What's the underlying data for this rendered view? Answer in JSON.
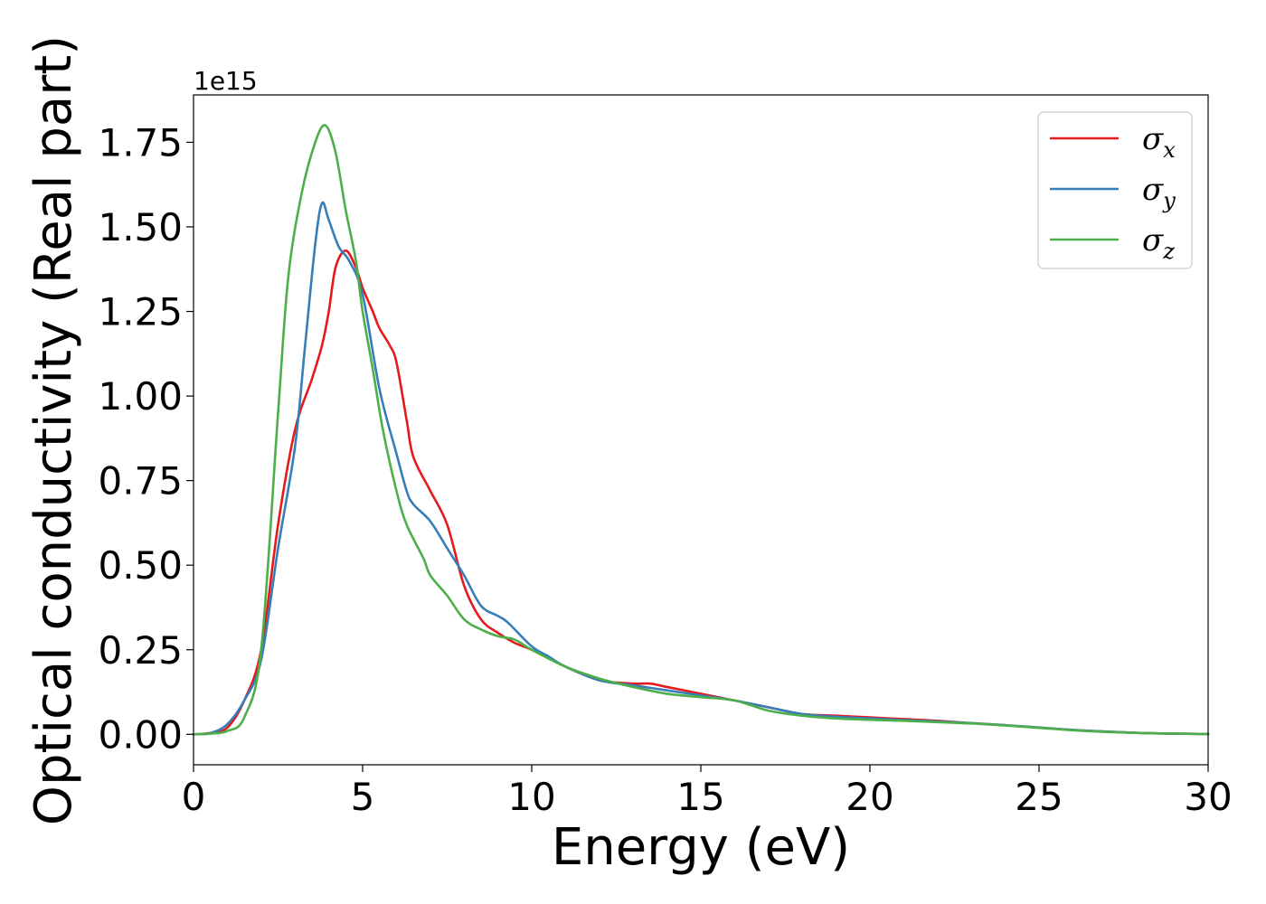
{
  "chart_data": {
    "type": "line",
    "title": "",
    "xlabel": "Energy (eV)",
    "ylabel": "Optical conductivity (Real part)",
    "y_offset_label": "1e15",
    "xlim": [
      0,
      30
    ],
    "ylim": [
      -0.09,
      1.89
    ],
    "x_ticks": [
      0,
      5,
      10,
      15,
      20,
      25,
      30
    ],
    "x_tick_labels": [
      "0",
      "5",
      "10",
      "15",
      "20",
      "25",
      "30"
    ],
    "y_ticks": [
      0,
      0.25,
      0.5,
      0.75,
      1.0,
      1.25,
      1.5,
      1.75
    ],
    "y_tick_labels": [
      "0.00",
      "0.25",
      "0.50",
      "0.75",
      "1.00",
      "1.25",
      "1.50",
      "1.75"
    ],
    "grid": false,
    "legend_position": "top-right",
    "series": [
      {
        "name": "σx",
        "legend_base": "σ",
        "legend_sub": "x",
        "color": "#e41a1c",
        "points": [
          [
            0,
            0
          ],
          [
            0.5,
            0.004
          ],
          [
            1,
            0.02
          ],
          [
            1.5,
            0.1
          ],
          [
            2,
            0.25
          ],
          [
            2.5,
            0.62
          ],
          [
            3,
            0.9
          ],
          [
            3.5,
            1.05
          ],
          [
            3.8,
            1.15
          ],
          [
            4,
            1.25
          ],
          [
            4.2,
            1.38
          ],
          [
            4.5,
            1.43
          ],
          [
            4.8,
            1.38
          ],
          [
            5,
            1.32
          ],
          [
            5.3,
            1.25
          ],
          [
            5.5,
            1.2
          ],
          [
            5.8,
            1.15
          ],
          [
            6,
            1.1
          ],
          [
            6.3,
            0.93
          ],
          [
            6.5,
            0.82
          ],
          [
            7,
            0.72
          ],
          [
            7.5,
            0.62
          ],
          [
            8,
            0.44
          ],
          [
            8.5,
            0.34
          ],
          [
            9,
            0.3
          ],
          [
            9.5,
            0.27
          ],
          [
            10,
            0.25
          ],
          [
            11,
            0.2
          ],
          [
            12,
            0.16
          ],
          [
            13,
            0.15
          ],
          [
            13.5,
            0.15
          ],
          [
            14,
            0.14
          ],
          [
            15,
            0.12
          ],
          [
            16,
            0.1
          ],
          [
            17,
            0.08
          ],
          [
            18,
            0.06
          ],
          [
            19,
            0.055
          ],
          [
            20,
            0.05
          ],
          [
            21,
            0.045
          ],
          [
            22,
            0.04
          ],
          [
            23,
            0.033
          ],
          [
            24,
            0.027
          ],
          [
            25,
            0.02
          ],
          [
            26,
            0.013
          ],
          [
            27,
            0.008
          ],
          [
            28,
            0.004
          ],
          [
            29,
            0.002
          ],
          [
            30,
            0.001
          ]
        ]
      },
      {
        "name": "σy",
        "legend_base": "σ",
        "legend_sub": "y",
        "color": "#377eb8",
        "points": [
          [
            0,
            0
          ],
          [
            0.5,
            0.004
          ],
          [
            1,
            0.03
          ],
          [
            1.5,
            0.1
          ],
          [
            2,
            0.22
          ],
          [
            2.5,
            0.55
          ],
          [
            3,
            0.85
          ],
          [
            3.3,
            1.15
          ],
          [
            3.6,
            1.45
          ],
          [
            3.8,
            1.57
          ],
          [
            4,
            1.52
          ],
          [
            4.3,
            1.44
          ],
          [
            4.6,
            1.4
          ],
          [
            5,
            1.3
          ],
          [
            5.5,
            1.02
          ],
          [
            6,
            0.83
          ],
          [
            6.3,
            0.72
          ],
          [
            6.5,
            0.68
          ],
          [
            7,
            0.63
          ],
          [
            7.5,
            0.55
          ],
          [
            8,
            0.47
          ],
          [
            8.5,
            0.38
          ],
          [
            9,
            0.35
          ],
          [
            9.3,
            0.33
          ],
          [
            10,
            0.26
          ],
          [
            10.5,
            0.23
          ],
          [
            11,
            0.2
          ],
          [
            12,
            0.16
          ],
          [
            13,
            0.145
          ],
          [
            14,
            0.13
          ],
          [
            15,
            0.115
          ],
          [
            16,
            0.1
          ],
          [
            17,
            0.08
          ],
          [
            18,
            0.06
          ],
          [
            19,
            0.052
          ],
          [
            20,
            0.047
          ],
          [
            21,
            0.042
          ],
          [
            22,
            0.038
          ],
          [
            23,
            0.033
          ],
          [
            24,
            0.027
          ],
          [
            25,
            0.02
          ],
          [
            26,
            0.013
          ],
          [
            27,
            0.008
          ],
          [
            28,
            0.004
          ],
          [
            29,
            0.002
          ],
          [
            30,
            0.001
          ]
        ]
      },
      {
        "name": "σz",
        "legend_base": "σ",
        "legend_sub": "z",
        "color": "#4daf4a",
        "points": [
          [
            0,
            0
          ],
          [
            0.5,
            0.002
          ],
          [
            1,
            0.01
          ],
          [
            1.5,
            0.05
          ],
          [
            2,
            0.25
          ],
          [
            2.5,
            0.95
          ],
          [
            2.8,
            1.35
          ],
          [
            3.2,
            1.6
          ],
          [
            3.6,
            1.75
          ],
          [
            3.9,
            1.8
          ],
          [
            4.2,
            1.72
          ],
          [
            4.5,
            1.55
          ],
          [
            4.8,
            1.4
          ],
          [
            5,
            1.25
          ],
          [
            5.3,
            1.08
          ],
          [
            5.6,
            0.9
          ],
          [
            6,
            0.72
          ],
          [
            6.3,
            0.62
          ],
          [
            6.8,
            0.52
          ],
          [
            7,
            0.47
          ],
          [
            7.5,
            0.41
          ],
          [
            8,
            0.34
          ],
          [
            8.5,
            0.31
          ],
          [
            9,
            0.29
          ],
          [
            9.5,
            0.28
          ],
          [
            10,
            0.25
          ],
          [
            11,
            0.2
          ],
          [
            12,
            0.165
          ],
          [
            13,
            0.14
          ],
          [
            14,
            0.12
          ],
          [
            15,
            0.11
          ],
          [
            16,
            0.1
          ],
          [
            17,
            0.07
          ],
          [
            18,
            0.055
          ],
          [
            19,
            0.047
          ],
          [
            20,
            0.043
          ],
          [
            21,
            0.04
          ],
          [
            22,
            0.036
          ],
          [
            23,
            0.032
          ],
          [
            24,
            0.026
          ],
          [
            25,
            0.019
          ],
          [
            26,
            0.012
          ],
          [
            27,
            0.007
          ],
          [
            28,
            0.004
          ],
          [
            29,
            0.002
          ],
          [
            30,
            0.001
          ]
        ]
      }
    ]
  }
}
